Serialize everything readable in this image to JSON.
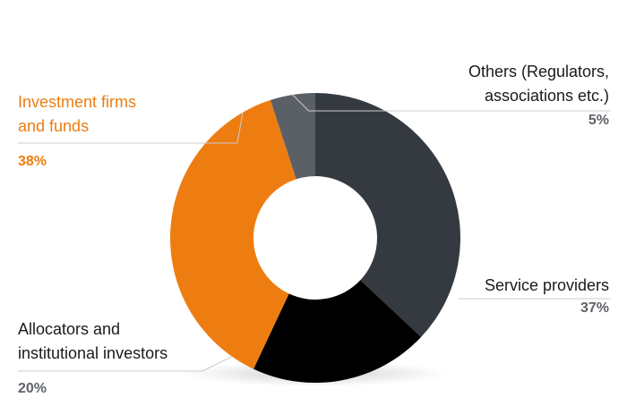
{
  "chart_data": {
    "type": "pie",
    "donut": true,
    "title": "",
    "start_angle_deg": 0,
    "direction": "clockwise",
    "slices": [
      {
        "key": "service",
        "label": "Service providers",
        "display_value": "37%",
        "value": 37,
        "color": "#343a40"
      },
      {
        "key": "allocators",
        "label": "Allocators and\ninstitutional investors",
        "display_value": "20%",
        "value": 20,
        "color": "#000000"
      },
      {
        "key": "investment",
        "label": "Investment firms\nand funds",
        "display_value": "38%",
        "value": 38,
        "color": "#ee7d11"
      },
      {
        "key": "others",
        "label": "Others (Regulators,\nassociations etc.)",
        "display_value": "5%",
        "value": 5,
        "color": "#5a6066"
      }
    ]
  },
  "colors": {
    "label_text": "#1a1a1a",
    "value_text": "#5f6368",
    "leader_line": "#cccccc",
    "accent": "#ee7d11"
  }
}
